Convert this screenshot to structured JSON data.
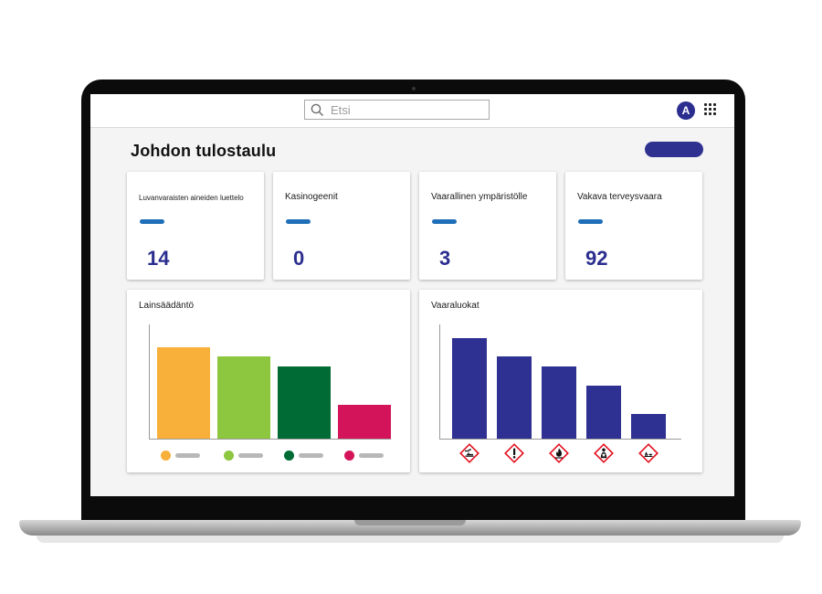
{
  "search": {
    "placeholder": "Etsi"
  },
  "user": {
    "avatar_initial": "A"
  },
  "page": {
    "title": "Johdon tulostaulu"
  },
  "kpis": [
    {
      "label": "Luvanvaraisten aineiden luettelo",
      "value": "14"
    },
    {
      "label": "Kasinogeenit",
      "value": "0"
    },
    {
      "label": "Vaarallinen ympäristölle",
      "value": "3"
    },
    {
      "label": "Vakava terveysvaara",
      "value": "92"
    }
  ],
  "colors": {
    "accent": "#2f3190",
    "kpi_value": "#2b2e8f",
    "kpi_dash": "#1f6fb8",
    "legislation": [
      "#f8b03b",
      "#8dc63f",
      "#006b35",
      "#d4145a"
    ],
    "hazard_bars": "#2e3192"
  },
  "chart_data": [
    {
      "type": "bar",
      "title": "Lainsäädäntö",
      "categories": [
        "",
        "",
        "",
        ""
      ],
      "values": [
        48,
        43,
        38,
        18
      ],
      "ylim": [
        0,
        60
      ],
      "legend": "bottom"
    },
    {
      "type": "bar",
      "title": "Vaaraluokat",
      "categories": [
        "corrosive-icon",
        "exclamation-icon",
        "flammable-icon",
        "health-hazard-icon",
        "environment-icon"
      ],
      "values": [
        53,
        43,
        38,
        28,
        13
      ],
      "ylim": [
        0,
        60
      ]
    }
  ]
}
